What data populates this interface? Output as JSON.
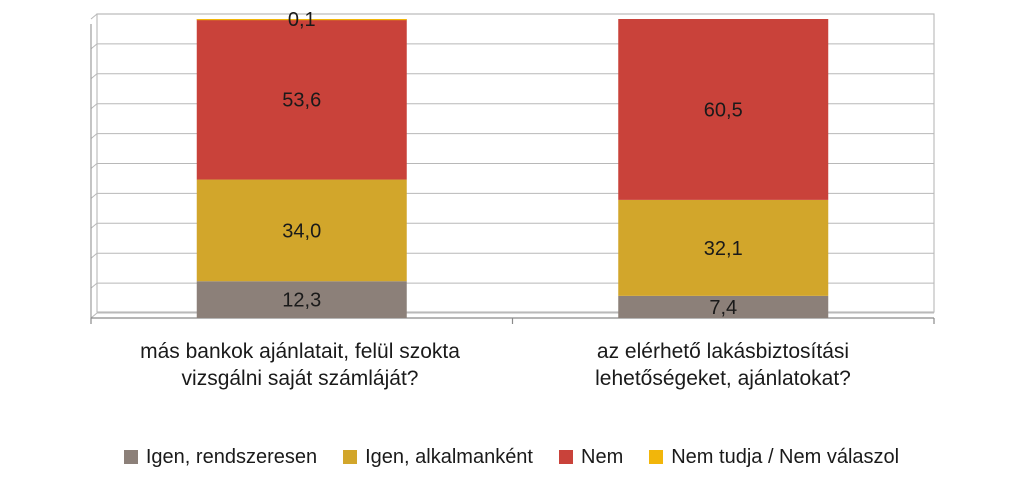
{
  "chart_data": {
    "type": "bar",
    "stacked": true,
    "categories": [
      [
        "más bankok ajánlatait, felül szokta",
        "vizsgálni saját számláját?"
      ],
      [
        "az elérhető lakásbiztosítási",
        "lehetőségeket, ajánlatokat?"
      ]
    ],
    "series": [
      {
        "name": "Igen, rendszeresen",
        "color": "#8c8079",
        "values": [
          12.3,
          7.4
        ],
        "labels": [
          "12,3",
          "7,4"
        ]
      },
      {
        "name": "Igen, alkalmanként",
        "color": "#d2a62b",
        "values": [
          34.0,
          32.1
        ],
        "labels": [
          "34,0",
          "32,1"
        ]
      },
      {
        "name": "Nem",
        "color": "#c9423a",
        "values": [
          53.6,
          60.5
        ],
        "labels": [
          "53,6",
          "60,5"
        ]
      },
      {
        "name": "Nem tudja / Nem válaszol",
        "color": "#f2b60a",
        "values": [
          0.1,
          0.0
        ],
        "labels": [
          "0,1",
          ""
        ]
      }
    ],
    "ylim": [
      0,
      100
    ],
    "grid": true,
    "legend_position": "bottom"
  }
}
